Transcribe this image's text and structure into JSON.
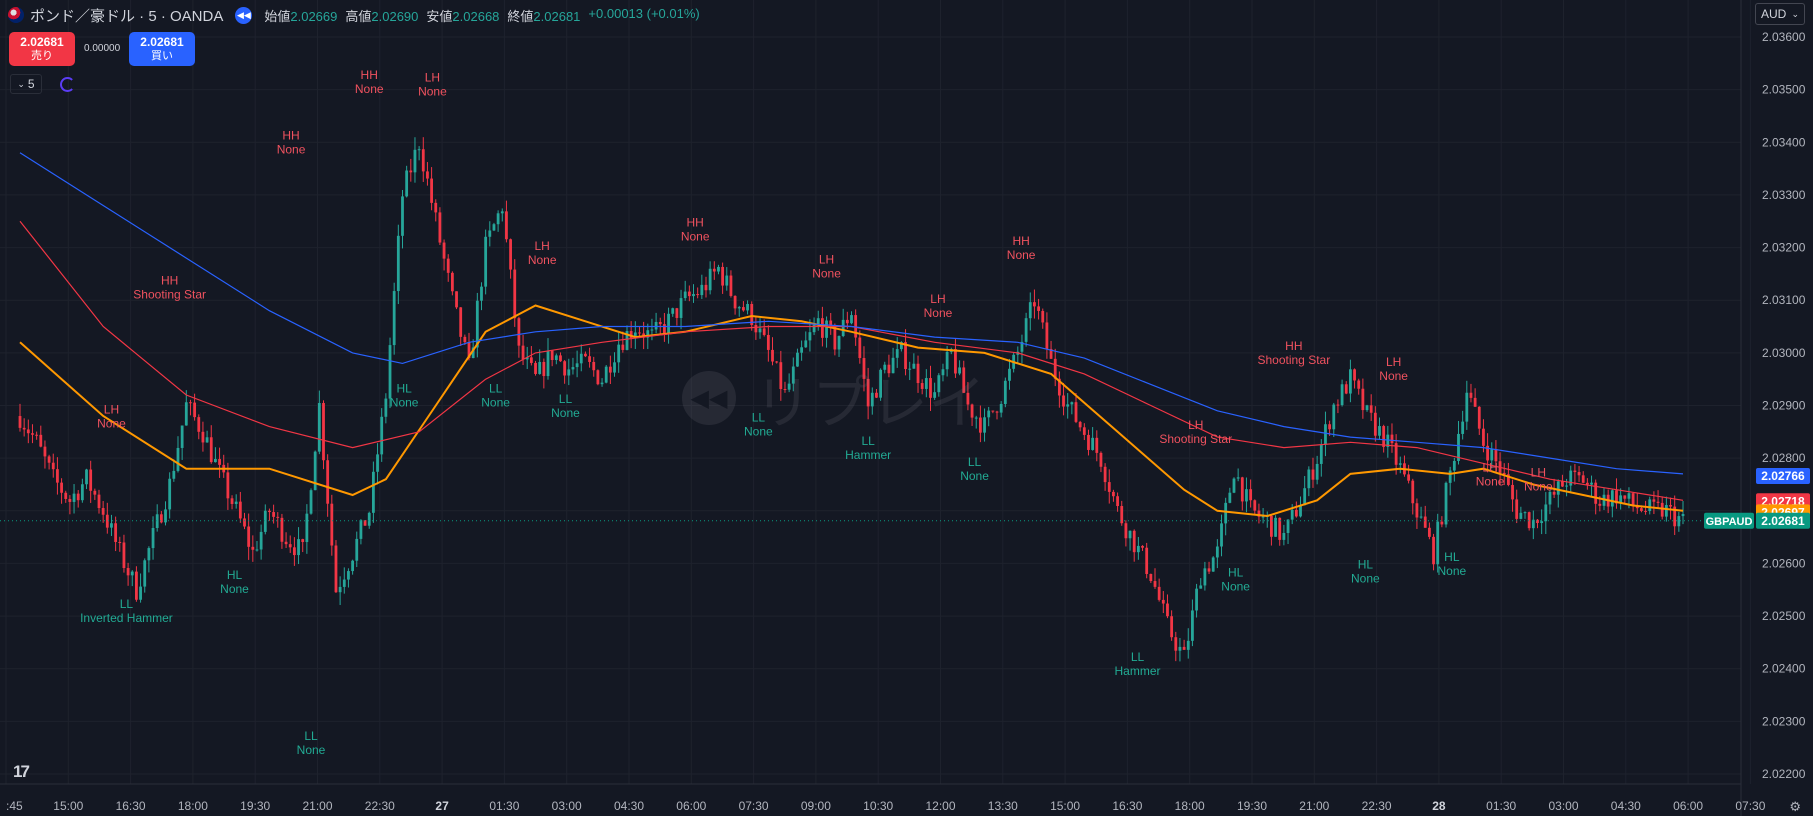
{
  "header": {
    "symbol": "ポンド／豪ドル · 5 · OANDA",
    "open_label": "始値",
    "open": "2.02669",
    "high_label": "高値",
    "high": "2.02690",
    "low_label": "安値",
    "low": "2.02668",
    "close_label": "終値",
    "close": "2.02681",
    "change": "+0.00013 (+0.01%)"
  },
  "trade": {
    "sell_price": "2.02681",
    "sell_label": "売り",
    "spread": "0.00000",
    "buy_price": "2.02681",
    "buy_label": "買い"
  },
  "toolbar": {
    "interval": "5",
    "currency": "AUD"
  },
  "watermark_text": "リプレイ",
  "colors": {
    "up": "#26a69a",
    "down": "#f23645",
    "ma_fast": "#ff9800",
    "ma_mid": "#f23645",
    "ma_slow": "#2962ff"
  },
  "chart_data": {
    "type": "line",
    "title": "",
    "y_ticks": [
      "2.03600",
      "2.03500",
      "2.03400",
      "2.03300",
      "2.03200",
      "2.03100",
      "2.03000",
      "2.02900",
      "2.02800",
      "2.02700",
      "2.02600",
      "2.02500",
      "2.02400",
      "2.02300",
      "2.02200"
    ],
    "x_ticks": [
      ":45",
      "15:00",
      "16:30",
      "18:00",
      "19:30",
      "21:00",
      "22:30",
      "27",
      "01:30",
      "03:00",
      "04:30",
      "06:00",
      "07:30",
      "09:00",
      "10:30",
      "12:00",
      "13:30",
      "15:00",
      "16:30",
      "18:00",
      "19:30",
      "21:00",
      "22:30",
      "28",
      "01:30",
      "03:00",
      "04:30",
      "06:00",
      "07:30"
    ],
    "ylim": [
      2.022,
      2.036
    ],
    "x_index_range": [
      0,
      100
    ],
    "price_path": [
      [
        0,
        2.0288
      ],
      [
        1,
        2.0283
      ],
      [
        2,
        2.0276
      ],
      [
        3,
        2.0272
      ],
      [
        4,
        2.0276
      ],
      [
        5,
        2.027
      ],
      [
        6,
        2.0262
      ],
      [
        7,
        2.0255
      ],
      [
        8,
        2.0265
      ],
      [
        9,
        2.0275
      ],
      [
        10,
        2.029
      ],
      [
        11,
        2.0285
      ],
      [
        12,
        2.0277
      ],
      [
        13,
        2.027
      ],
      [
        14,
        2.0262
      ],
      [
        15,
        2.027
      ],
      [
        16,
        2.0265
      ],
      [
        17,
        2.0262
      ],
      [
        18,
        2.029
      ],
      [
        19,
        2.0255
      ],
      [
        20,
        2.0262
      ],
      [
        21,
        2.027
      ],
      [
        22,
        2.0292
      ],
      [
        23,
        2.033
      ],
      [
        24,
        2.034
      ],
      [
        25,
        2.0325
      ],
      [
        26,
        2.031
      ],
      [
        27,
        2.0297
      ],
      [
        28,
        2.032
      ],
      [
        29,
        2.0328
      ],
      [
        30,
        2.03
      ],
      [
        31,
        2.0295
      ],
      [
        32,
        2.03
      ],
      [
        33,
        2.0297
      ],
      [
        34,
        2.0298
      ],
      [
        35,
        2.0295
      ],
      [
        36,
        2.0302
      ],
      [
        37,
        2.0305
      ],
      [
        38,
        2.0303
      ],
      [
        39,
        2.0306
      ],
      [
        40,
        2.031
      ],
      [
        41,
        2.0312
      ],
      [
        42,
        2.0316
      ],
      [
        43,
        2.031
      ],
      [
        44,
        2.0307
      ],
      [
        45,
        2.03
      ],
      [
        46,
        2.0292
      ],
      [
        47,
        2.03
      ],
      [
        48,
        2.0306
      ],
      [
        49,
        2.0302
      ],
      [
        50,
        2.0308
      ],
      [
        51,
        2.029
      ],
      [
        52,
        2.0297
      ],
      [
        53,
        2.03
      ],
      [
        54,
        2.0296
      ],
      [
        55,
        2.0292
      ],
      [
        56,
        2.03
      ],
      [
        57,
        2.029
      ],
      [
        58,
        2.0286
      ],
      [
        59,
        2.0292
      ],
      [
        60,
        2.03
      ],
      [
        61,
        2.031
      ],
      [
        62,
        2.0298
      ],
      [
        63,
        2.029
      ],
      [
        64,
        2.0285
      ],
      [
        65,
        2.028
      ],
      [
        66,
        2.027
      ],
      [
        67,
        2.0264
      ],
      [
        68,
        2.0258
      ],
      [
        69,
        2.0248
      ],
      [
        70,
        2.0242
      ],
      [
        71,
        2.0258
      ],
      [
        72,
        2.0262
      ],
      [
        73,
        2.0278
      ],
      [
        74,
        2.027
      ],
      [
        75,
        2.0268
      ],
      [
        76,
        2.0265
      ],
      [
        77,
        2.0272
      ],
      [
        78,
        2.028
      ],
      [
        79,
        2.029
      ],
      [
        80,
        2.0295
      ],
      [
        81,
        2.0288
      ],
      [
        82,
        2.0284
      ],
      [
        83,
        2.0278
      ],
      [
        84,
        2.027
      ],
      [
        85,
        2.0262
      ],
      [
        86,
        2.0277
      ],
      [
        87,
        2.0293
      ],
      [
        88,
        2.0283
      ],
      [
        89,
        2.0278
      ],
      [
        90,
        2.027
      ],
      [
        91,
        2.0268
      ],
      [
        92,
        2.0272
      ],
      [
        93,
        2.0276
      ],
      [
        94,
        2.0276
      ],
      [
        95,
        2.0272
      ],
      [
        96,
        2.0273
      ],
      [
        97,
        2.0271
      ],
      [
        98,
        2.027
      ],
      [
        99,
        2.027
      ],
      [
        100,
        2.0268
      ]
    ],
    "series": [
      {
        "name": "",
        "key": "ma_fast",
        "points": [
          [
            0,
            2.0302
          ],
          [
            5,
            2.0288
          ],
          [
            10,
            2.0278
          ],
          [
            15,
            2.0278
          ],
          [
            20,
            2.0273
          ],
          [
            22,
            2.0276
          ],
          [
            25,
            2.029
          ],
          [
            28,
            2.0304
          ],
          [
            31,
            2.0309
          ],
          [
            34,
            2.0306
          ],
          [
            37,
            2.0303
          ],
          [
            40,
            2.0304
          ],
          [
            44,
            2.0307
          ],
          [
            47,
            2.0306
          ],
          [
            50,
            2.0304
          ],
          [
            54,
            2.0301
          ],
          [
            58,
            2.03
          ],
          [
            62,
            2.0296
          ],
          [
            66,
            2.0285
          ],
          [
            70,
            2.0274
          ],
          [
            72,
            2.027
          ],
          [
            75,
            2.0269
          ],
          [
            78,
            2.0272
          ],
          [
            80,
            2.0277
          ],
          [
            83,
            2.0278
          ],
          [
            86,
            2.0277
          ],
          [
            88,
            2.0278
          ],
          [
            91,
            2.0275
          ],
          [
            94,
            2.0273
          ],
          [
            97,
            2.0271
          ],
          [
            100,
            2.027
          ]
        ]
      },
      {
        "name": "",
        "key": "ma_mid",
        "points": [
          [
            0,
            2.0325
          ],
          [
            5,
            2.0305
          ],
          [
            10,
            2.0292
          ],
          [
            15,
            2.0286
          ],
          [
            20,
            2.0282
          ],
          [
            24,
            2.0285
          ],
          [
            28,
            2.0295
          ],
          [
            31,
            2.03
          ],
          [
            35,
            2.0302
          ],
          [
            40,
            2.0304
          ],
          [
            45,
            2.0305
          ],
          [
            50,
            2.0305
          ],
          [
            55,
            2.0302
          ],
          [
            60,
            2.03
          ],
          [
            64,
            2.0296
          ],
          [
            68,
            2.029
          ],
          [
            72,
            2.0284
          ],
          [
            76,
            2.0282
          ],
          [
            80,
            2.0283
          ],
          [
            84,
            2.0282
          ],
          [
            88,
            2.0279
          ],
          [
            92,
            2.0276
          ],
          [
            96,
            2.0274
          ],
          [
            100,
            2.0272
          ]
        ]
      },
      {
        "name": "",
        "key": "ma_slow",
        "points": [
          [
            0,
            2.0338
          ],
          [
            5,
            2.0328
          ],
          [
            10,
            2.0318
          ],
          [
            15,
            2.0308
          ],
          [
            20,
            2.03
          ],
          [
            23,
            2.0298
          ],
          [
            27,
            2.0302
          ],
          [
            31,
            2.0304
          ],
          [
            35,
            2.0305
          ],
          [
            40,
            2.0305
          ],
          [
            45,
            2.0306
          ],
          [
            50,
            2.0305
          ],
          [
            55,
            2.0303
          ],
          [
            60,
            2.0302
          ],
          [
            64,
            2.0299
          ],
          [
            68,
            2.0294
          ],
          [
            72,
            2.0289
          ],
          [
            76,
            2.0286
          ],
          [
            80,
            2.0284
          ],
          [
            84,
            2.0283
          ],
          [
            88,
            2.0282
          ],
          [
            92,
            2.028
          ],
          [
            96,
            2.0278
          ],
          [
            100,
            2.0277
          ]
        ]
      }
    ],
    "price_labels": [
      {
        "text": "2.02766",
        "value": 2.02766,
        "color": "#2962ff"
      },
      {
        "text": "2.02718",
        "value": 2.02718,
        "color": "#f23645"
      },
      {
        "text": "2.02697",
        "value": 2.02697,
        "color": "#ff9800"
      },
      {
        "text": "2.02681",
        "value": 2.02681,
        "color": "#089981",
        "symbol": "GBPAUD"
      }
    ],
    "annotations": [
      {
        "line1": "LH",
        "line2": "None",
        "x": 5.5,
        "y": 2.02885,
        "kind": "high"
      },
      {
        "line1": "HH",
        "line2": "Shooting Star",
        "x": 9.0,
        "y": 2.0313,
        "kind": "high"
      },
      {
        "line1": "HH",
        "line2": "None",
        "x": 16.3,
        "y": 2.03405,
        "kind": "high"
      },
      {
        "line1": "HH",
        "line2": "None",
        "x": 21.0,
        "y": 2.0352,
        "kind": "high"
      },
      {
        "line1": "LH",
        "line2": "None",
        "x": 24.8,
        "y": 2.03515,
        "kind": "high"
      },
      {
        "line1": "LH",
        "line2": "None",
        "x": 31.4,
        "y": 2.03195,
        "kind": "high"
      },
      {
        "line1": "HH",
        "line2": "None",
        "x": 40.6,
        "y": 2.0324,
        "kind": "high"
      },
      {
        "line1": "LH",
        "line2": "None",
        "x": 48.5,
        "y": 2.0317,
        "kind": "high"
      },
      {
        "line1": "LH",
        "line2": "None",
        "x": 55.2,
        "y": 2.03095,
        "kind": "high"
      },
      {
        "line1": "HH",
        "line2": "None",
        "x": 60.2,
        "y": 2.03205,
        "kind": "high"
      },
      {
        "line1": "LH",
        "line2": "Shooting Star",
        "x": 70.7,
        "y": 2.02855,
        "kind": "high"
      },
      {
        "line1": "HH",
        "line2": "Shooting Star",
        "x": 76.6,
        "y": 2.03005,
        "kind": "high"
      },
      {
        "line1": "LH",
        "line2": "None",
        "x": 82.6,
        "y": 2.02975,
        "kind": "high"
      },
      {
        "line1": "LH",
        "line2": "None",
        "x": 88.4,
        "y": 2.02775,
        "kind": "high"
      },
      {
        "line1": "LH",
        "line2": "None",
        "x": 91.3,
        "y": 2.02765,
        "kind": "high"
      },
      {
        "line1": "LL",
        "line2": "Inverted Hammer",
        "x": 6.4,
        "y": 2.02515,
        "kind": "low"
      },
      {
        "line1": "HL",
        "line2": "None",
        "x": 12.9,
        "y": 2.0257,
        "kind": "low"
      },
      {
        "line1": "LL",
        "line2": "None",
        "x": 17.5,
        "y": 2.02265,
        "kind": "low"
      },
      {
        "line1": "HL",
        "line2": "None",
        "x": 23.1,
        "y": 2.02925,
        "kind": "low"
      },
      {
        "line1": "LL",
        "line2": "None",
        "x": 28.6,
        "y": 2.02925,
        "kind": "low"
      },
      {
        "line1": "LL",
        "line2": "None",
        "x": 32.8,
        "y": 2.02905,
        "kind": "low"
      },
      {
        "line1": "LL",
        "line2": "None",
        "x": 44.4,
        "y": 2.0287,
        "kind": "low"
      },
      {
        "line1": "LL",
        "line2": "Hammer",
        "x": 51.0,
        "y": 2.02825,
        "kind": "low"
      },
      {
        "line1": "LL",
        "line2": "None",
        "x": 57.4,
        "y": 2.02785,
        "kind": "low"
      },
      {
        "line1": "LL",
        "line2": "Hammer",
        "x": 67.2,
        "y": 2.02415,
        "kind": "low"
      },
      {
        "line1": "HL",
        "line2": "None",
        "x": 73.1,
        "y": 2.02575,
        "kind": "low"
      },
      {
        "line1": "HL",
        "line2": "None",
        "x": 80.9,
        "y": 2.0259,
        "kind": "low"
      },
      {
        "line1": "HL",
        "line2": "None",
        "x": 86.1,
        "y": 2.02605,
        "kind": "low"
      }
    ]
  }
}
